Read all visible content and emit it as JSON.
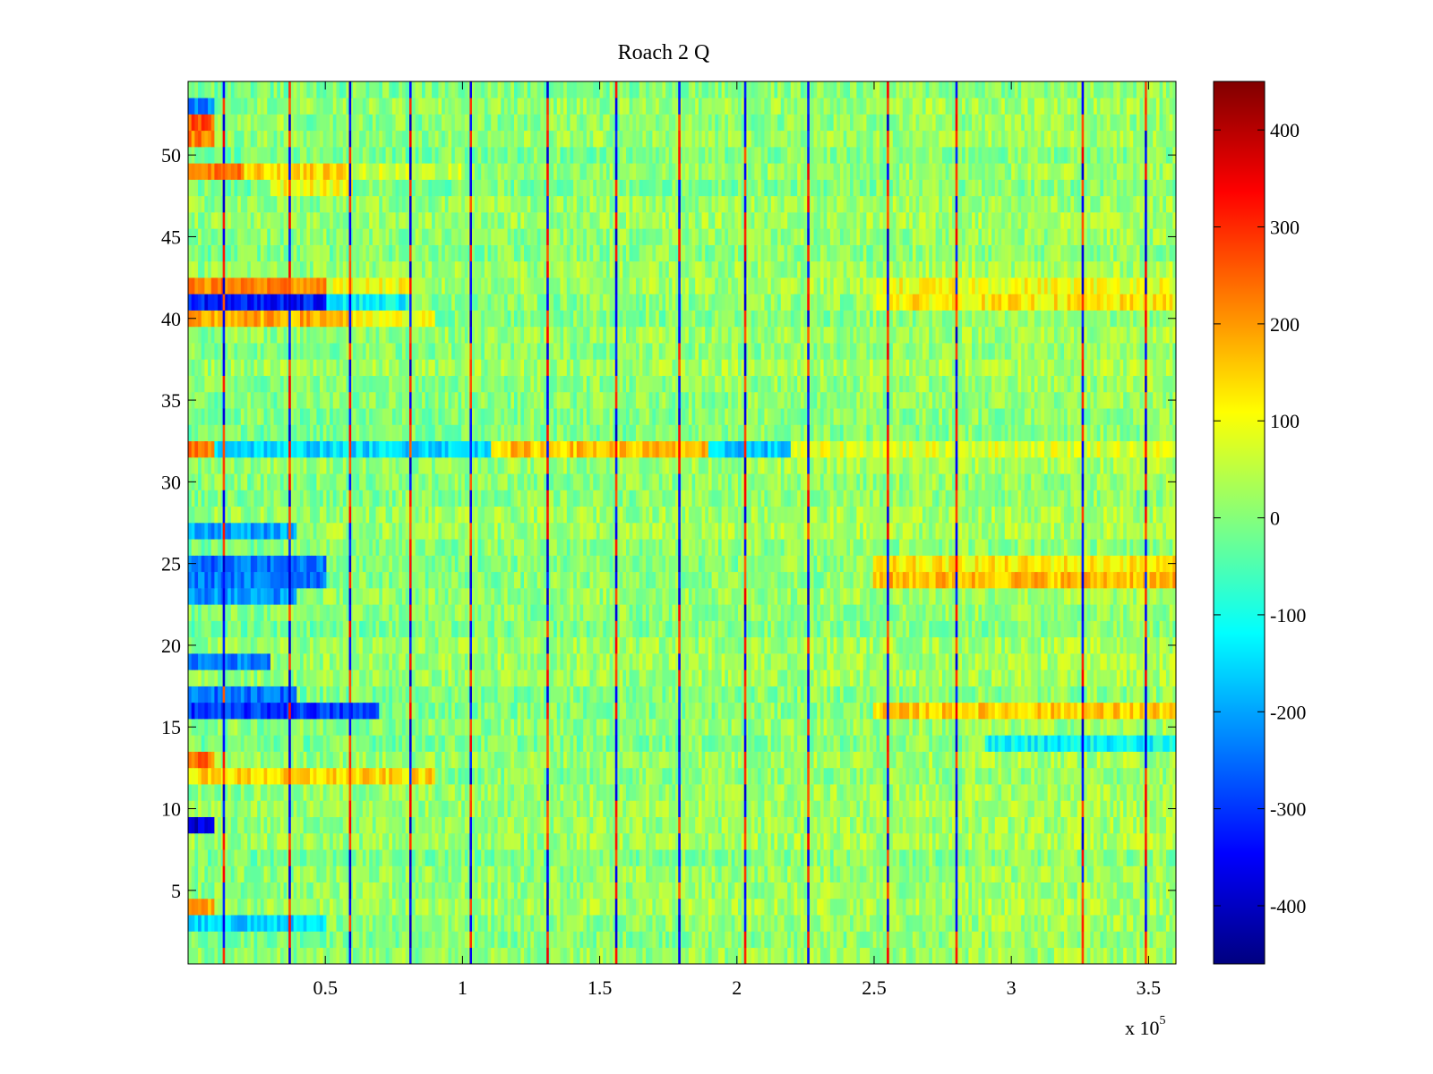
{
  "chart_data": {
    "type": "heatmap",
    "title": "Roach 2 Q",
    "xlabel": "",
    "ylabel": "",
    "x_exponent_label": "x 10",
    "x_exponent_power": "5",
    "xlim": [
      0,
      3.6
    ],
    "ylim": [
      0.5,
      54.5
    ],
    "x_ticks": [
      0.5,
      1,
      1.5,
      2,
      2.5,
      3,
      3.5
    ],
    "x_tick_labels": [
      "0.5",
      "1",
      "1.5",
      "2",
      "2.5",
      "3",
      "3.5"
    ],
    "y_ticks": [
      5,
      10,
      15,
      20,
      25,
      30,
      35,
      40,
      45,
      50
    ],
    "y_tick_labels": [
      "5",
      "10",
      "15",
      "20",
      "25",
      "30",
      "35",
      "40",
      "45",
      "50"
    ],
    "rows": 54,
    "colorbar": {
      "clim": [
        -460,
        450
      ],
      "ticks": [
        400,
        300,
        200,
        100,
        0,
        -100,
        -200,
        -300,
        -400
      ],
      "tick_labels": [
        "400",
        "300",
        "200",
        "100",
        "0",
        "-100",
        "-200",
        "-300",
        "-400"
      ],
      "colormap": "jet"
    },
    "vertical_stripe_x": [
      0.13,
      0.37,
      0.59,
      0.81,
      1.03,
      1.31,
      1.56,
      1.79,
      2.03,
      2.26,
      2.55,
      2.8,
      3.26,
      3.49
    ],
    "row_profiles": [
      {
        "row": 53,
        "segments": [
          [
            0,
            0.1,
            -230
          ]
        ]
      },
      {
        "row": 52,
        "segments": [
          [
            0,
            0.1,
            260
          ],
          [
            0.1,
            0.4,
            30
          ]
        ]
      },
      {
        "row": 51,
        "segments": [
          [
            0,
            0.1,
            230
          ]
        ]
      },
      {
        "row": 49,
        "segments": [
          [
            0,
            0.2,
            220
          ],
          [
            0.2,
            0.6,
            140
          ],
          [
            0.6,
            1.0,
            60
          ]
        ]
      },
      {
        "row": 48,
        "segments": [
          [
            0.3,
            0.6,
            100
          ]
        ]
      },
      {
        "row": 42,
        "segments": [
          [
            0,
            0.5,
            220
          ],
          [
            0.5,
            0.8,
            100
          ],
          [
            2.5,
            3.6,
            100
          ]
        ]
      },
      {
        "row": 41,
        "segments": [
          [
            0,
            0.5,
            -330
          ],
          [
            0.5,
            0.8,
            -120
          ],
          [
            2.5,
            3.6,
            120
          ]
        ]
      },
      {
        "row": 40,
        "segments": [
          [
            0,
            0.6,
            180
          ],
          [
            0.6,
            0.9,
            90
          ]
        ]
      },
      {
        "row": 32,
        "segments": [
          [
            0,
            0.1,
            220
          ],
          [
            0.1,
            1.1,
            -150
          ],
          [
            1.1,
            1.9,
            160
          ],
          [
            1.9,
            2.2,
            -170
          ],
          [
            2.2,
            3.6,
            80
          ]
        ]
      },
      {
        "row": 27,
        "segments": [
          [
            0,
            0.4,
            -200
          ]
        ]
      },
      {
        "row": 25,
        "segments": [
          [
            0,
            0.5,
            -250
          ],
          [
            2.5,
            3.6,
            120
          ]
        ]
      },
      {
        "row": 24,
        "segments": [
          [
            0,
            0.5,
            -240
          ],
          [
            2.5,
            3.6,
            170
          ]
        ]
      },
      {
        "row": 23,
        "segments": [
          [
            0,
            0.4,
            -210
          ]
        ]
      },
      {
        "row": 19,
        "segments": [
          [
            0,
            0.3,
            -230
          ]
        ]
      },
      {
        "row": 17,
        "segments": [
          [
            0,
            0.4,
            -250
          ]
        ]
      },
      {
        "row": 16,
        "segments": [
          [
            0,
            0.7,
            -300
          ],
          [
            2.5,
            3.6,
            150
          ]
        ]
      },
      {
        "row": 14,
        "segments": [
          [
            2.9,
            3.6,
            -120
          ]
        ]
      },
      {
        "row": 13,
        "segments": [
          [
            0,
            0.1,
            230
          ]
        ]
      },
      {
        "row": 12,
        "segments": [
          [
            0,
            0.9,
            140
          ]
        ]
      },
      {
        "row": 9,
        "segments": [
          [
            0,
            0.1,
            -380
          ]
        ]
      },
      {
        "row": 4,
        "segments": [
          [
            0,
            0.1,
            200
          ]
        ]
      },
      {
        "row": 3,
        "segments": [
          [
            0,
            0.5,
            -160
          ]
        ]
      }
    ]
  }
}
